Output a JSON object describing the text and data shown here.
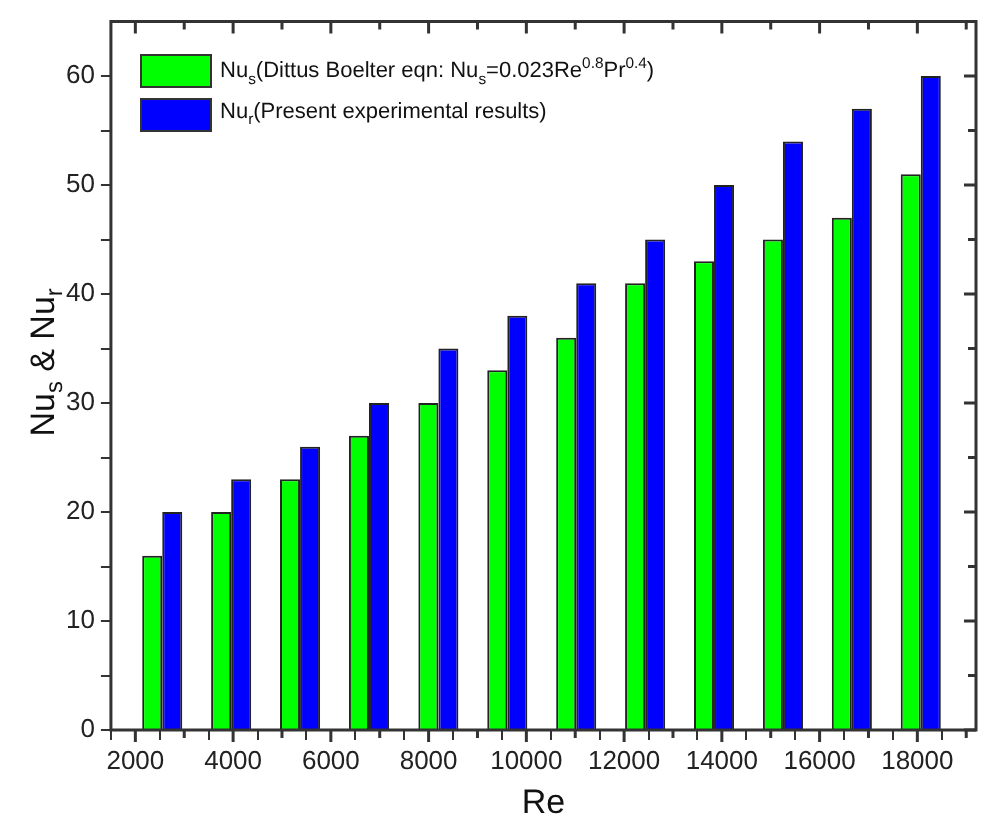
{
  "chart_data": {
    "type": "bar",
    "xlabel": "Re",
    "ylabel": "Nu$_{s}$ & Nu$_{r}$",
    "x": [
      2550,
      3960,
      5370,
      6780,
      8200,
      9610,
      11020,
      12430,
      13840,
      15250,
      16660,
      18070
    ],
    "series": [
      {
        "name": "Nu$_{s}$(Dittus Boelter eqn: Nu$_{s}$=0.023Re$^{0.8}$Pr$^{0.4}$)",
        "color": "#00ff00",
        "values": [
          16,
          20,
          23,
          27,
          30,
          33,
          36,
          41,
          43,
          45,
          47,
          51
        ]
      },
      {
        "name": "Nu$_{r}$(Present experimental results)",
        "color": "#0000ff",
        "values": [
          20,
          23,
          26,
          30,
          35,
          38,
          41,
          45,
          50,
          54,
          57,
          60
        ]
      }
    ],
    "xlim": [
      1500,
      19200
    ],
    "xticks": [
      2000,
      {
        "value": 3000,
        "label": null
      },
      4000,
      {
        "value": 5000,
        "label": null
      },
      6000,
      {
        "value": 7000,
        "label": null
      },
      8000,
      {
        "value": 9000,
        "label": null
      },
      10000,
      {
        "value": 11000,
        "label": null
      },
      12000,
      {
        "value": 13000,
        "label": null
      },
      14000,
      {
        "value": 15000,
        "label": null
      },
      16000,
      {
        "value": 17000,
        "label": null
      },
      18000,
      {
        "value": 19000,
        "label": null
      }
    ],
    "ylim": [
      0,
      65
    ],
    "yticks": [
      0,
      {
        "value": 5,
        "label": null
      },
      10,
      {
        "value": 15,
        "label": null
      },
      20,
      {
        "value": 25,
        "label": null
      },
      30,
      {
        "value": 35,
        "label": null
      },
      40,
      {
        "value": 45,
        "label": null
      },
      50,
      {
        "value": 55,
        "label": null
      },
      60
    ],
    "grid": false,
    "legend": "top left"
  }
}
